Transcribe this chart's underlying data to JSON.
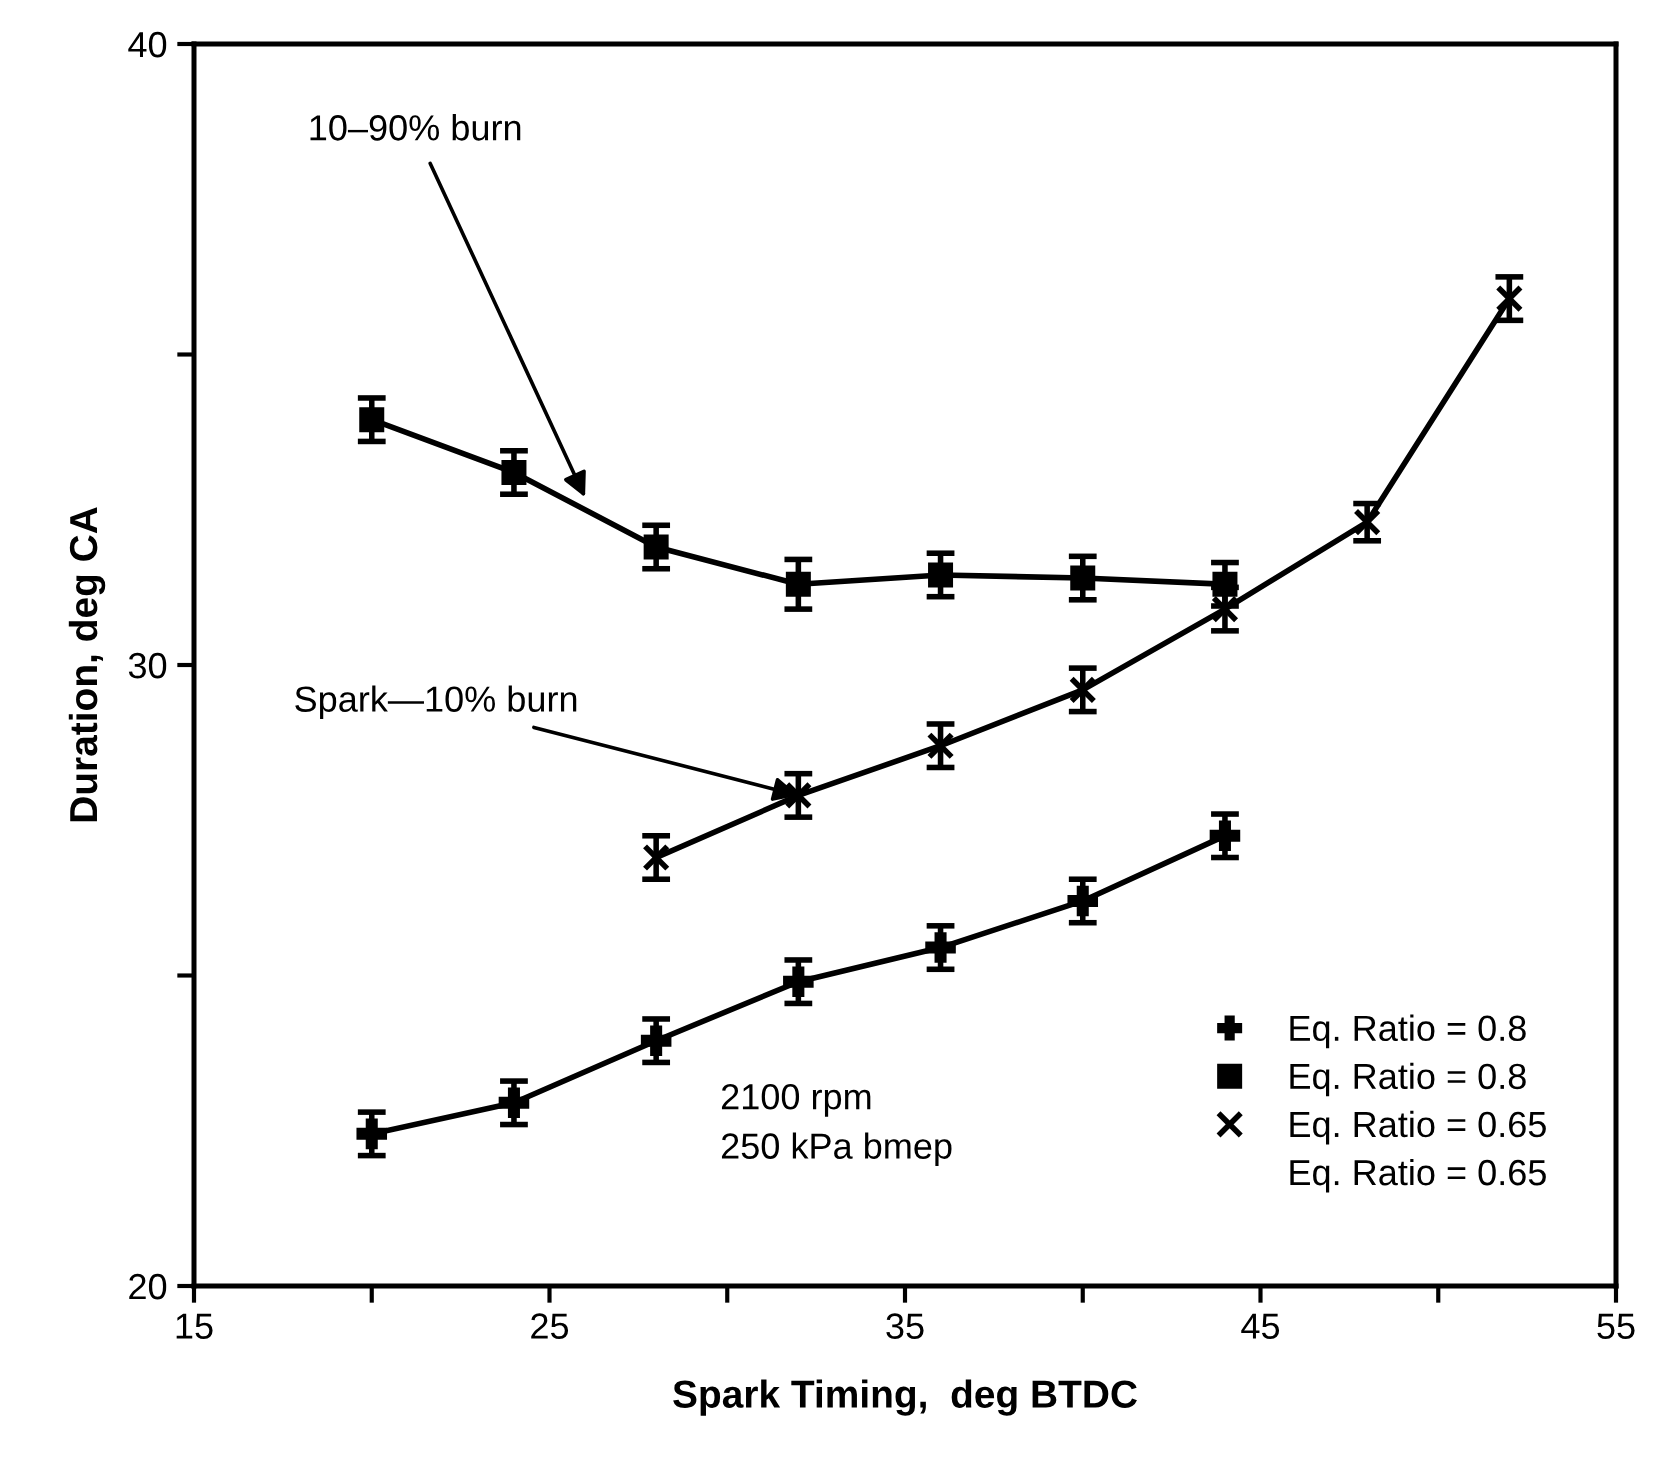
{
  "chart_data": {
    "type": "line",
    "xlabel": "Spark Timing,  deg BTDC",
    "ylabel": "Duration, deg CA",
    "xlim": [
      15,
      55
    ],
    "xticks": [
      15,
      {
        "value": 20,
        "label": null
      },
      25,
      {
        "value": 30,
        "label": null
      },
      35,
      {
        "value": 40,
        "label": null
      },
      45,
      {
        "value": 50,
        "label": null
      },
      55
    ],
    "ylim": [
      20,
      40
    ],
    "yticks": [
      20,
      {
        "value": 25,
        "label": null
      },
      30,
      {
        "value": 35,
        "label": null
      },
      40
    ],
    "grid": false,
    "legend": "bottom right",
    "line_style": "solid",
    "series": [
      {
        "name": "Eq. Ratio = 0.8",
        "color": "#000000",
        "marker": "plus",
        "x": [
          20,
          24,
          28,
          32,
          36,
          40,
          44
        ],
        "values": [
          22.45,
          22.95,
          23.95,
          24.9,
          25.45,
          26.2,
          27.25
        ],
        "errors": [
          0.35,
          0.35,
          0.35,
          0.35,
          0.35,
          0.35,
          0.35
        ]
      },
      {
        "name": "Eq. Ratio = 0.8",
        "color": "#000000",
        "marker": "square",
        "x": [
          20,
          24,
          28,
          32,
          36,
          40,
          44
        ],
        "values": [
          33.95,
          33.1,
          31.9,
          31.3,
          31.45,
          31.4,
          31.3
        ],
        "errors": [
          0.35,
          0.35,
          0.35,
          0.4,
          0.35,
          0.35,
          0.35
        ]
      },
      {
        "name": "Eq. Ratio = 0.65",
        "color": "#000000",
        "marker": "cross",
        "x": [
          28,
          32,
          36,
          40,
          44,
          48,
          52
        ],
        "values": [
          26.9,
          27.9,
          28.7,
          29.6,
          30.9,
          32.3,
          35.9
        ],
        "errors": [
          0.35,
          0.35,
          0.35,
          0.35,
          0.35,
          0.3,
          0.35
        ]
      },
      {
        "name": "Eq. Ratio = 0.65",
        "color": "#000000",
        "marker": "none"
      }
    ],
    "annotations": [
      {
        "text": "10–90% burn",
        "x": 26,
        "y": 32.7
      },
      {
        "text": "Spark—10% burn",
        "x": 32,
        "y": 27.9
      },
      "2100 rpm\n250 kPa bmep"
    ]
  }
}
